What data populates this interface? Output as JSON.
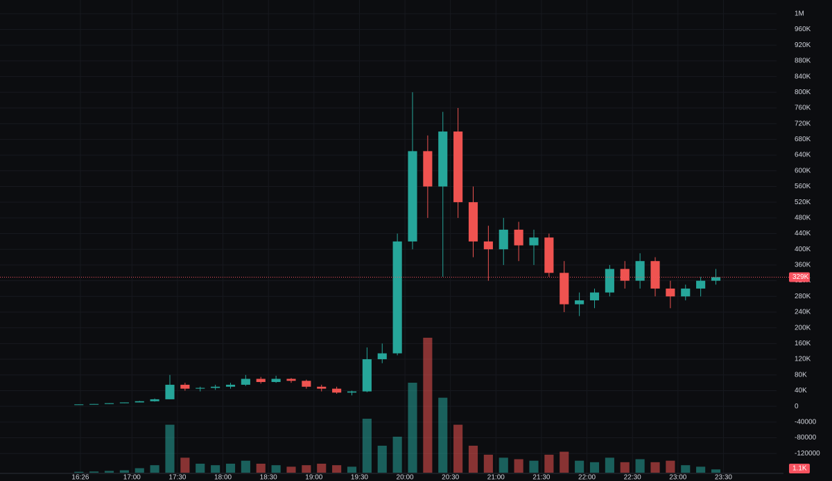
{
  "chart_data": {
    "type": "candlestick",
    "x": [
      985,
      995,
      1005,
      1015,
      1025,
      1035,
      1045,
      1055,
      1065,
      1075,
      1085,
      1095,
      1105,
      1115,
      1125,
      1135,
      1145,
      1155,
      1165,
      1175,
      1185,
      1195,
      1205,
      1215,
      1225,
      1235,
      1245,
      1255,
      1265,
      1275,
      1285,
      1295,
      1305,
      1315,
      1325,
      1335,
      1345,
      1355,
      1365,
      1375,
      1385,
      1395,
      1405
    ],
    "open": [
      5000,
      5000,
      6000,
      8000,
      10000,
      13000,
      18000,
      55000,
      45000,
      47000,
      50000,
      55000,
      70000,
      62000,
      70000,
      65000,
      50000,
      45000,
      35000,
      38000,
      120000,
      135000,
      420000,
      650000,
      560000,
      700000,
      520000,
      420000,
      400000,
      450000,
      410000,
      430000,
      340000,
      260000,
      270000,
      290000,
      350000,
      320000,
      370000,
      300000,
      280000,
      300000,
      320000
    ],
    "high": [
      5000,
      6000,
      8000,
      10000,
      14000,
      20000,
      80000,
      60000,
      50000,
      55000,
      60000,
      80000,
      75000,
      78000,
      72000,
      68000,
      55000,
      50000,
      40000,
      150000,
      160000,
      440000,
      800000,
      690000,
      750000,
      760000,
      560000,
      460000,
      480000,
      470000,
      450000,
      440000,
      370000,
      290000,
      300000,
      360000,
      370000,
      390000,
      380000,
      320000,
      310000,
      330000,
      350000
    ],
    "low": [
      4000,
      5000,
      6000,
      8000,
      10000,
      12000,
      18000,
      40000,
      38000,
      42000,
      45000,
      52000,
      58000,
      60000,
      60000,
      45000,
      38000,
      32000,
      28000,
      36000,
      110000,
      130000,
      400000,
      480000,
      330000,
      480000,
      380000,
      320000,
      360000,
      370000,
      360000,
      330000,
      240000,
      230000,
      250000,
      280000,
      300000,
      300000,
      280000,
      250000,
      270000,
      280000,
      310000
    ],
    "close": [
      5000,
      6000,
      8000,
      10000,
      13000,
      18000,
      55000,
      45000,
      47000,
      50000,
      55000,
      70000,
      62000,
      70000,
      65000,
      50000,
      45000,
      35000,
      38000,
      120000,
      135000,
      420000,
      650000,
      560000,
      700000,
      520000,
      420000,
      400000,
      450000,
      410000,
      430000,
      340000,
      260000,
      270000,
      290000,
      350000,
      320000,
      370000,
      300000,
      280000,
      300000,
      320000,
      329000
    ],
    "volume": [
      300,
      400,
      600,
      800,
      1500,
      2500,
      16000,
      5000,
      3000,
      2500,
      3000,
      4000,
      3000,
      2500,
      2000,
      2500,
      3000,
      2500,
      2000,
      18000,
      9000,
      12000,
      30000,
      45000,
      25000,
      16000,
      9000,
      6000,
      5000,
      4500,
      4000,
      6000,
      7000,
      4000,
      3500,
      5000,
      3500,
      4500,
      3500,
      4000,
      2500,
      2000,
      1100
    ],
    "up_color": "#26a69a",
    "down_color": "#ef5350",
    "xlim": [
      933,
      1445
    ],
    "xticks": [
      {
        "value": 986,
        "label": "16:26"
      },
      {
        "value": 1020,
        "label": "17:00"
      },
      {
        "value": 1050,
        "label": "17:30"
      },
      {
        "value": 1080,
        "label": "18:00"
      },
      {
        "value": 1110,
        "label": "18:30"
      },
      {
        "value": 1140,
        "label": "19:00"
      },
      {
        "value": 1170,
        "label": "19:30"
      },
      {
        "value": 1200,
        "label": "20:00"
      },
      {
        "value": 1230,
        "label": "20:30"
      },
      {
        "value": 1260,
        "label": "21:00"
      },
      {
        "value": 1290,
        "label": "21:30"
      },
      {
        "value": 1320,
        "label": "22:00"
      },
      {
        "value": 1350,
        "label": "22:30"
      },
      {
        "value": 1380,
        "label": "23:00"
      },
      {
        "value": 1410,
        "label": "23:30"
      }
    ],
    "ylim": [
      -169000,
      1035000
    ],
    "yticks": [
      {
        "value": 1000000,
        "label": "1M"
      },
      {
        "value": 960000,
        "label": "960K"
      },
      {
        "value": 920000,
        "label": "920K"
      },
      {
        "value": 880000,
        "label": "880K"
      },
      {
        "value": 840000,
        "label": "840K"
      },
      {
        "value": 800000,
        "label": "800K"
      },
      {
        "value": 760000,
        "label": "760K"
      },
      {
        "value": 720000,
        "label": "720K"
      },
      {
        "value": 680000,
        "label": "680K"
      },
      {
        "value": 640000,
        "label": "640K"
      },
      {
        "value": 600000,
        "label": "600K"
      },
      {
        "value": 560000,
        "label": "560K"
      },
      {
        "value": 520000,
        "label": "520K"
      },
      {
        "value": 480000,
        "label": "480K"
      },
      {
        "value": 440000,
        "label": "440K"
      },
      {
        "value": 400000,
        "label": "400K"
      },
      {
        "value": 360000,
        "label": "360K"
      },
      {
        "value": 320000,
        "label": "320K"
      },
      {
        "value": 280000,
        "label": "280K"
      },
      {
        "value": 240000,
        "label": "240K"
      },
      {
        "value": 200000,
        "label": "200K"
      },
      {
        "value": 160000,
        "label": "160K"
      },
      {
        "value": 120000,
        "label": "120K"
      },
      {
        "value": 80000,
        "label": "80K"
      },
      {
        "value": 40000,
        "label": "40K"
      },
      0,
      -40000,
      -80000,
      -120000
    ],
    "last_price": {
      "value": 329000,
      "label": "329K"
    },
    "last_volume": {
      "value": 1100,
      "label": "1.1K"
    },
    "grid": true
  }
}
